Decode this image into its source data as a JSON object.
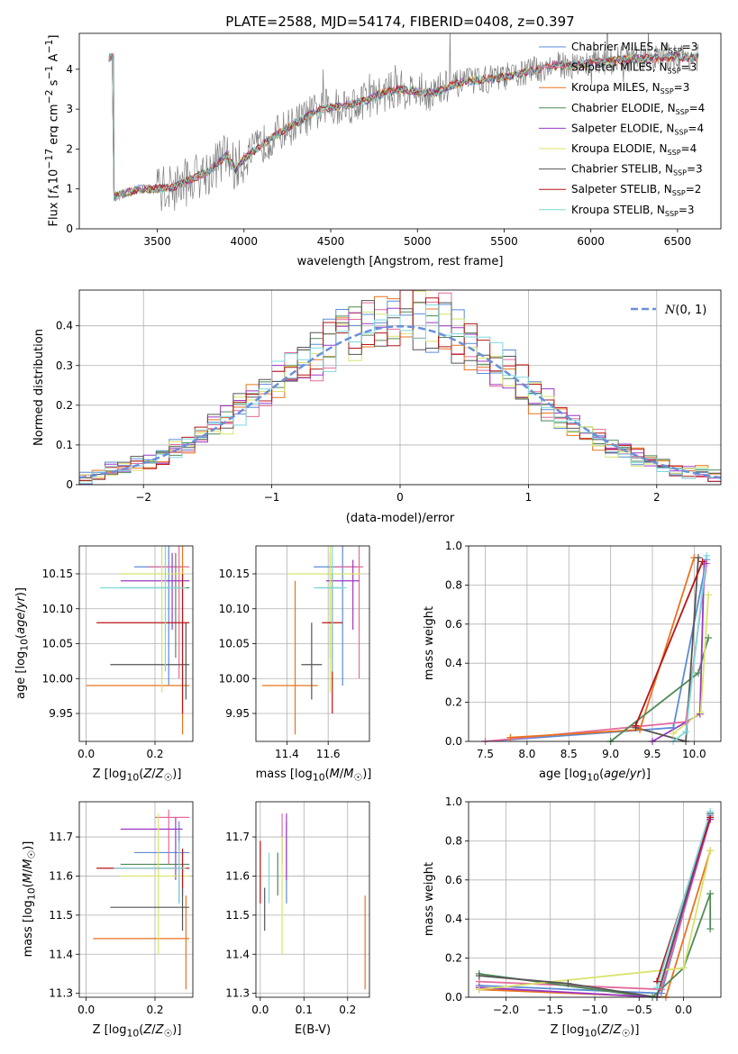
{
  "colors": {
    "chabrier_miles": "#5b8bd6",
    "salpeter_miles": "#e36b9c",
    "kroupa_miles": "#e8731f",
    "chabrier_elodie": "#4f8a55",
    "salpeter_elodie": "#9b38c4",
    "kroupa_elodie": "#d8e36a",
    "chabrier_stelib": "#555555",
    "salpeter_stelib": "#b81414",
    "kroupa_stelib": "#7fd8dc",
    "normal": "#6b8fd9",
    "data_spectrum": "#808080",
    "grid": "#b0b0b0"
  },
  "chart_data": [
    {
      "id": "spectrum",
      "type": "line",
      "title": "PLATE=2588, MJD=54174, FIBERID=0408, z=0.397",
      "xlabel": "wavelength [Angstrom, rest frame]",
      "ylabel": "Flux [f_λ 10^-17 erg cm^-2 s^-1 A^-1]",
      "xlim": [
        3050,
        6750
      ],
      "ylim": [
        0,
        4.9
      ],
      "xticks": [
        3500,
        4000,
        4500,
        5000,
        5500,
        6000,
        6500
      ],
      "yticks": [
        0,
        1,
        2,
        3,
        4
      ],
      "grid": false,
      "legend_position": "top-right",
      "legend": [
        {
          "label": "Chabrier MILES, N_SSP=3",
          "color_key": "chabrier_miles"
        },
        {
          "label": "Salpeter MILES, N_SSP=3",
          "color_key": "salpeter_miles"
        },
        {
          "label": "Kroupa MILES, N_SSP=3",
          "color_key": "kroupa_miles"
        },
        {
          "label": "Chabrier ELODIE, N_SSP=4",
          "color_key": "chabrier_elodie"
        },
        {
          "label": "Salpeter ELODIE, N_SSP=4",
          "color_key": "salpeter_elodie"
        },
        {
          "label": "Kroupa ELODIE, N_SSP=4",
          "color_key": "kroupa_elodie"
        },
        {
          "label": "Chabrier STELIB, N_SSP=3",
          "color_key": "chabrier_stelib"
        },
        {
          "label": "Salpeter STELIB, N_SSP=2",
          "color_key": "salpeter_stelib"
        },
        {
          "label": "Kroupa STELIB, N_SSP=3",
          "color_key": "kroupa_stelib"
        }
      ],
      "continuum": {
        "x": [
          3250,
          3400,
          3500,
          3600,
          3700,
          3800,
          3900,
          3950,
          4000,
          4100,
          4200,
          4300,
          4400,
          4500,
          4600,
          4700,
          4800,
          4900,
          5000,
          5100,
          5200,
          5300,
          5400,
          5500,
          5600,
          5700,
          5800,
          5900,
          6000,
          6100,
          6200,
          6300,
          6400,
          6500
        ],
        "y": [
          0.8,
          1.0,
          1.0,
          1.05,
          1.25,
          1.45,
          1.85,
          1.5,
          1.75,
          2.1,
          2.4,
          2.65,
          2.9,
          3.05,
          3.1,
          3.2,
          3.4,
          3.5,
          3.45,
          3.4,
          3.6,
          3.7,
          3.75,
          3.8,
          3.9,
          4.0,
          4.1,
          4.1,
          4.15,
          4.2,
          4.25,
          4.25,
          4.3,
          4.3
        ]
      }
    },
    {
      "id": "residuals",
      "type": "line",
      "xlabel": "(data-model)/error",
      "ylabel": "Normed distribution",
      "xlim": [
        -2.5,
        2.5
      ],
      "ylim": [
        0,
        0.49
      ],
      "xticks": [
        -2,
        -1,
        0,
        1,
        2
      ],
      "yticks": [
        0.0,
        0.1,
        0.2,
        0.3,
        0.4
      ],
      "grid": true,
      "legend_position": "top-right",
      "legend": [
        {
          "label": "N(0,1)",
          "color_key": "normal",
          "style": "dashed"
        }
      ],
      "bins": [
        -2.5,
        2.5,
        50
      ],
      "histogram": [
        0.02,
        0.03,
        0.04,
        0.04,
        0.05,
        0.06,
        0.07,
        0.09,
        0.1,
        0.12,
        0.14,
        0.16,
        0.19,
        0.21,
        0.24,
        0.26,
        0.29,
        0.31,
        0.33,
        0.35,
        0.37,
        0.39,
        0.4,
        0.41,
        0.42,
        0.43,
        0.42,
        0.41,
        0.4,
        0.38,
        0.36,
        0.33,
        0.3,
        0.28,
        0.25,
        0.22,
        0.2,
        0.17,
        0.15,
        0.13,
        0.11,
        0.09,
        0.08,
        0.07,
        0.06,
        0.05,
        0.04,
        0.03,
        0.03,
        0.02
      ]
    },
    {
      "id": "age-vs-z",
      "type": "scatter",
      "xlabel": "Z [log10(Z/Z☉)]",
      "ylabel": "age [log10(age/yr)]",
      "xlim": [
        -0.02,
        0.31
      ],
      "ylim": [
        9.91,
        10.19
      ],
      "xticks": [
        "0.0",
        "0.2"
      ],
      "yticks": [
        "9.95",
        "10.00",
        "10.05",
        "10.10",
        "10.15"
      ],
      "grid": true,
      "points": [
        {
          "color_key": "chabrier_miles",
          "x": 0.24,
          "xerr": [
            0.14,
            0.28
          ],
          "y": 10.16,
          "yerr": [
            9.99,
            10.19
          ]
        },
        {
          "color_key": "salpeter_miles",
          "x": 0.27,
          "xerr": [
            0.18,
            0.3
          ],
          "y": 10.16,
          "yerr": [
            10.0,
            10.19
          ]
        },
        {
          "color_key": "kroupa_miles",
          "x": 0.28,
          "xerr": [
            0.0,
            0.3
          ],
          "y": 9.99,
          "yerr": [
            9.92,
            10.19
          ]
        },
        {
          "color_key": "chabrier_elodie",
          "x": 0.26,
          "xerr": [
            0.1,
            0.3
          ],
          "y": 10.13,
          "yerr": [
            10.03,
            10.18
          ]
        },
        {
          "color_key": "salpeter_elodie",
          "x": 0.25,
          "xerr": [
            0.1,
            0.3
          ],
          "y": 10.14,
          "yerr": [
            10.07,
            10.18
          ]
        },
        {
          "color_key": "kroupa_elodie",
          "x": 0.22,
          "xerr": [
            0.1,
            0.29
          ],
          "y": 10.15,
          "yerr": [
            9.98,
            10.19
          ]
        },
        {
          "color_key": "chabrier_stelib",
          "x": 0.29,
          "xerr": [
            0.07,
            0.3
          ],
          "y": 10.02,
          "yerr": [
            9.97,
            10.08
          ]
        },
        {
          "color_key": "salpeter_stelib",
          "x": 0.28,
          "xerr": [
            0.03,
            0.3
          ],
          "y": 10.08,
          "yerr": [
            9.95,
            10.15
          ]
        },
        {
          "color_key": "kroupa_stelib",
          "x": 0.23,
          "xerr": [
            0.04,
            0.29
          ],
          "y": 10.13,
          "yerr": [
            10.01,
            10.19
          ]
        }
      ]
    },
    {
      "id": "age-vs-mass",
      "type": "scatter",
      "xlabel": "mass [log10(M/M☉)]",
      "xlim": [
        11.25,
        11.8
      ],
      "ylim": [
        9.91,
        10.19
      ],
      "xticks": [
        "11.4",
        "11.6"
      ],
      "yticks": [
        "9.95",
        "10.00",
        "10.05",
        "10.10",
        "10.15"
      ],
      "grid": true,
      "points": [
        {
          "color_key": "chabrier_miles",
          "x": 11.67,
          "xerr": [
            11.53,
            11.74
          ],
          "y": 10.16,
          "yerr": [
            9.99,
            10.19
          ]
        },
        {
          "color_key": "salpeter_miles",
          "x": 11.75,
          "xerr": [
            11.63,
            11.77
          ],
          "y": 10.16,
          "yerr": [
            10.0,
            10.19
          ]
        },
        {
          "color_key": "kroupa_miles",
          "x": 11.44,
          "xerr": [
            11.28,
            11.55
          ],
          "y": 9.99,
          "yerr": [
            9.92,
            10.14
          ]
        },
        {
          "color_key": "chabrier_elodie",
          "x": 11.61,
          "xerr": [
            11.55,
            11.66
          ],
          "y": 10.13,
          "yerr": [
            10.03,
            10.18
          ]
        },
        {
          "color_key": "salpeter_elodie",
          "x": 11.72,
          "xerr": [
            11.59,
            11.75
          ],
          "y": 10.14,
          "yerr": [
            10.07,
            10.17
          ]
        },
        {
          "color_key": "kroupa_elodie",
          "x": 11.61,
          "xerr": [
            11.4,
            11.76
          ],
          "y": 10.15,
          "yerr": [
            9.98,
            10.19
          ]
        },
        {
          "color_key": "chabrier_stelib",
          "x": 11.52,
          "xerr": [
            11.47,
            11.57
          ],
          "y": 10.02,
          "yerr": [
            9.97,
            10.08
          ]
        },
        {
          "color_key": "salpeter_stelib",
          "x": 11.62,
          "xerr": [
            11.57,
            11.67
          ],
          "y": 10.08,
          "yerr": [
            9.95,
            10.15
          ]
        },
        {
          "color_key": "kroupa_stelib",
          "x": 11.62,
          "xerr": [
            11.53,
            11.69
          ],
          "y": 10.13,
          "yerr": [
            10.01,
            10.19
          ]
        }
      ]
    },
    {
      "id": "weight-vs-age",
      "type": "line",
      "xlabel": "age [log10(age/yr)]",
      "ylabel": "mass weight",
      "xlim": [
        7.3,
        10.32
      ],
      "ylim": [
        0,
        1.0
      ],
      "xticks": [
        "7.5",
        "8.0",
        "8.5",
        "9.0",
        "9.5",
        "10.0"
      ],
      "yticks": [
        "0.0",
        "0.2",
        "0.4",
        "0.6",
        "0.8",
        "1.0"
      ],
      "grid": true,
      "series": [
        {
          "color_key": "chabrier_miles",
          "x": [
            7.5,
            9.75,
            10.15
          ],
          "y": [
            0.0,
            0.07,
            0.93
          ]
        },
        {
          "color_key": "salpeter_miles",
          "x": [
            7.5,
            9.9,
            10.15
          ],
          "y": [
            0.0,
            0.1,
            0.91
          ]
        },
        {
          "color_key": "kroupa_miles",
          "x": [
            7.8,
            9.35,
            10.0
          ],
          "y": [
            0.02,
            0.06,
            0.94
          ]
        },
        {
          "color_key": "chabrier_elodie",
          "x": [
            9.0,
            10.05,
            10.17
          ],
          "y": [
            0.0,
            0.35,
            0.53
          ]
        },
        {
          "color_key": "salpeter_elodie",
          "x": [
            9.5,
            10.07,
            10.12
          ],
          "y": [
            0.0,
            0.14,
            0.91
          ]
        },
        {
          "color_key": "kroupa_elodie",
          "x": [
            9.75,
            10.08,
            10.17
          ],
          "y": [
            0.04,
            0.15,
            0.75
          ]
        },
        {
          "color_key": "chabrier_stelib",
          "x": [
            9.3,
            9.9,
            10.05
          ],
          "y": [
            0.07,
            0.0,
            0.94
          ]
        },
        {
          "color_key": "salpeter_stelib",
          "x": [
            9.3,
            10.1
          ],
          "y": [
            0.08,
            0.92
          ]
        },
        {
          "color_key": "kroupa_stelib",
          "x": [
            9.75,
            9.9,
            10.15
          ],
          "y": [
            0.0,
            0.05,
            0.95
          ]
        }
      ]
    },
    {
      "id": "mass-vs-z",
      "type": "scatter",
      "xlabel": "Z [log10(Z/Z☉)]",
      "ylabel": "mass [log10(M/M☉)]",
      "xlim": [
        -0.02,
        0.31
      ],
      "ylim": [
        11.29,
        11.79
      ],
      "xticks": [
        "0.0",
        "0.2"
      ],
      "yticks": [
        "11.3",
        "11.4",
        "11.5",
        "11.6",
        "11.7"
      ],
      "grid": true,
      "points": [
        {
          "color_key": "chabrier_miles",
          "x": 0.27,
          "xerr": [
            0.14,
            0.3
          ],
          "y": 11.66,
          "yerr": [
            11.53,
            11.74
          ]
        },
        {
          "color_key": "salpeter_miles",
          "x": 0.24,
          "xerr": [
            0.2,
            0.3
          ],
          "y": 11.75,
          "yerr": [
            11.63,
            11.77
          ]
        },
        {
          "color_key": "kroupa_miles",
          "x": 0.29,
          "xerr": [
            0.02,
            0.3
          ],
          "y": 11.44,
          "yerr": [
            11.31,
            11.55
          ]
        },
        {
          "color_key": "chabrier_elodie",
          "x": 0.28,
          "xerr": [
            0.1,
            0.3
          ],
          "y": 11.63,
          "yerr": [
            11.55,
            11.66
          ]
        },
        {
          "color_key": "salpeter_elodie",
          "x": 0.26,
          "xerr": [
            0.1,
            0.28
          ],
          "y": 11.72,
          "yerr": [
            11.59,
            11.75
          ]
        },
        {
          "color_key": "kroupa_elodie",
          "x": 0.21,
          "xerr": [
            0.1,
            0.3
          ],
          "y": 11.6,
          "yerr": [
            11.4,
            11.76
          ]
        },
        {
          "color_key": "chabrier_stelib",
          "x": 0.28,
          "xerr": [
            0.07,
            0.3
          ],
          "y": 11.52,
          "yerr": [
            11.46,
            11.57
          ]
        },
        {
          "color_key": "salpeter_stelib",
          "x": 0.28,
          "xerr": [
            0.03,
            0.3
          ],
          "y": 11.62,
          "yerr": [
            11.57,
            11.67
          ]
        },
        {
          "color_key": "kroupa_stelib",
          "x": 0.27,
          "xerr": [
            0.08,
            0.29
          ],
          "y": 11.62,
          "yerr": [
            11.53,
            11.69
          ]
        }
      ]
    },
    {
      "id": "mass-vs-ebv",
      "type": "scatter",
      "xlabel": "E(B-V)",
      "xlim": [
        -0.01,
        0.25
      ],
      "ylim": [
        11.29,
        11.79
      ],
      "xticks": [
        "0.0",
        "0.1",
        "0.2"
      ],
      "yticks": [
        "11.3",
        "11.4",
        "11.5",
        "11.6",
        "11.7"
      ],
      "grid": true,
      "points": [
        {
          "color_key": "chabrier_miles",
          "x": 0.06,
          "y": 11.66,
          "yerr": [
            11.53,
            11.74
          ]
        },
        {
          "color_key": "salpeter_miles",
          "x": 0.05,
          "y": 11.75,
          "yerr": [
            11.63,
            11.76
          ]
        },
        {
          "color_key": "kroupa_miles",
          "x": 0.24,
          "y": 11.44,
          "yerr": [
            11.31,
            11.55
          ]
        },
        {
          "color_key": "chabrier_elodie",
          "x": 0.04,
          "y": 11.63,
          "yerr": [
            11.55,
            11.66
          ]
        },
        {
          "color_key": "salpeter_elodie",
          "x": 0.06,
          "y": 11.72,
          "yerr": [
            11.59,
            11.76
          ]
        },
        {
          "color_key": "kroupa_elodie",
          "x": 0.05,
          "y": 11.6,
          "yerr": [
            11.4,
            11.7
          ]
        },
        {
          "color_key": "chabrier_stelib",
          "x": 0.01,
          "y": 11.52,
          "yerr": [
            11.46,
            11.57
          ]
        },
        {
          "color_key": "salpeter_stelib",
          "x": 0.0,
          "y": 11.62,
          "yerr": [
            11.53,
            11.69
          ]
        },
        {
          "color_key": "kroupa_stelib",
          "x": 0.02,
          "y": 11.62,
          "yerr": [
            11.53,
            11.66
          ]
        }
      ]
    },
    {
      "id": "weight-vs-z",
      "type": "line",
      "xlabel": "Z [log10(Z/Z☉)]",
      "ylabel": "mass weight",
      "xlim": [
        -2.42,
        0.42
      ],
      "ylim": [
        0,
        1.0
      ],
      "xticks": [
        "-2.0",
        "-1.5",
        "-1.0",
        "-0.5",
        "0.0"
      ],
      "yticks": [
        "0.0",
        "0.2",
        "0.4",
        "0.6",
        "0.8",
        "1.0"
      ],
      "grid": true,
      "series": [
        {
          "color_key": "chabrier_miles",
          "x": [
            -2.3,
            -0.25,
            0.3
          ],
          "y": [
            0.06,
            0.02,
            0.93
          ]
        },
        {
          "color_key": "salpeter_miles",
          "x": [
            -2.3,
            -0.25,
            0.3
          ],
          "y": [
            0.08,
            0.04,
            0.91
          ]
        },
        {
          "color_key": "kroupa_miles",
          "x": [
            -2.3,
            -0.2,
            0.3
          ],
          "y": [
            0.04,
            0.0,
            0.75
          ]
        },
        {
          "color_key": "chabrier_elodie",
          "x": [
            -2.3,
            -0.35,
            0.0,
            0.3,
            0.3
          ],
          "y": [
            0.12,
            0.0,
            0.15,
            0.53,
            0.35
          ]
        },
        {
          "color_key": "salpeter_elodie",
          "x": [
            -2.3,
            -0.3,
            0.3
          ],
          "y": [
            0.05,
            0.0,
            0.91
          ]
        },
        {
          "color_key": "kroupa_elodie",
          "x": [
            -2.3,
            0.0,
            0.3
          ],
          "y": [
            0.04,
            0.15,
            0.75
          ]
        },
        {
          "color_key": "chabrier_stelib",
          "x": [
            -2.3,
            -1.3,
            -0.3,
            0.3
          ],
          "y": [
            0.11,
            0.07,
            0.0,
            0.94
          ]
        },
        {
          "color_key": "salpeter_stelib",
          "x": [
            -0.3,
            0.3
          ],
          "y": [
            0.08,
            0.92
          ]
        },
        {
          "color_key": "kroupa_stelib",
          "x": [
            -0.3,
            0.3
          ],
          "y": [
            0.05,
            0.95
          ]
        }
      ]
    }
  ]
}
